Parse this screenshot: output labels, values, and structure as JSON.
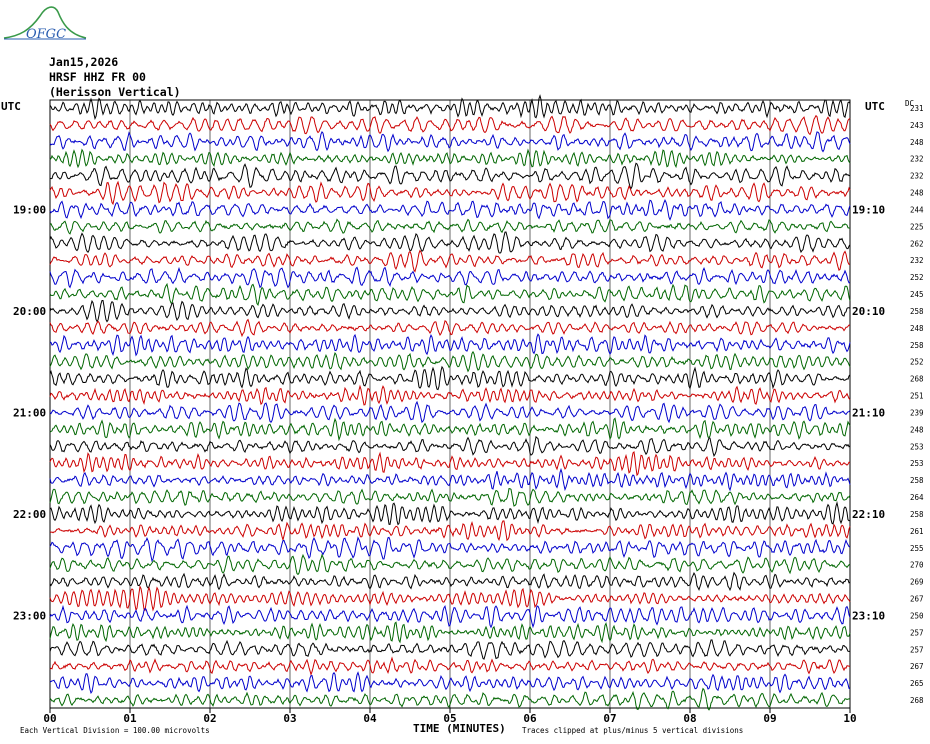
{
  "logo": {
    "text": "OFGC"
  },
  "header": {
    "date": "Jan15,2026",
    "station": "HRSF HHZ FR 00",
    "description": "(Herisson Vertical)"
  },
  "axis": {
    "left_label": "UTC",
    "right_label": "UTC",
    "dc_label": "DC",
    "xlabel": "TIME (MINUTES)",
    "footer_left": "Each Vertical Division =  100.00 microvolts",
    "footer_right": "Traces clipped at plus/minus 5 vertical divisions"
  },
  "colors": [
    "#000000",
    "#cc0000",
    "#0000cc",
    "#006600"
  ],
  "chart_data": {
    "type": "line",
    "title": "",
    "xlabel": "TIME (MINUTES)",
    "ylabel": "UTC",
    "xlim": [
      0,
      10
    ],
    "x_ticks": [
      "00",
      "01",
      "02",
      "03",
      "04",
      "05",
      "06",
      "07",
      "08",
      "09",
      "10"
    ],
    "rows": 36,
    "minutes_per_row": 10,
    "left_hour_labels": [
      {
        "label": "19:00",
        "row": 6
      },
      {
        "label": "20:00",
        "row": 12
      },
      {
        "label": "21:00",
        "row": 18
      },
      {
        "label": "22:00",
        "row": 24
      },
      {
        "label": "23:00",
        "row": 30
      }
    ],
    "right_hour_labels": [
      {
        "label": "19:10",
        "row": 6
      },
      {
        "label": "20:10",
        "row": 12
      },
      {
        "label": "21:10",
        "row": 18
      },
      {
        "label": "22:10",
        "row": 24
      },
      {
        "label": "23:10",
        "row": 30
      }
    ],
    "dc_offsets": [
      231,
      243,
      248,
      232,
      232,
      248,
      244,
      225,
      262,
      232,
      252,
      245,
      258,
      248,
      258,
      252,
      268,
      251,
      239,
      248,
      253,
      253,
      258,
      264,
      258,
      261,
      255,
      270,
      269,
      267,
      250,
      257,
      257,
      267,
      265,
      268
    ],
    "grid": true
  }
}
